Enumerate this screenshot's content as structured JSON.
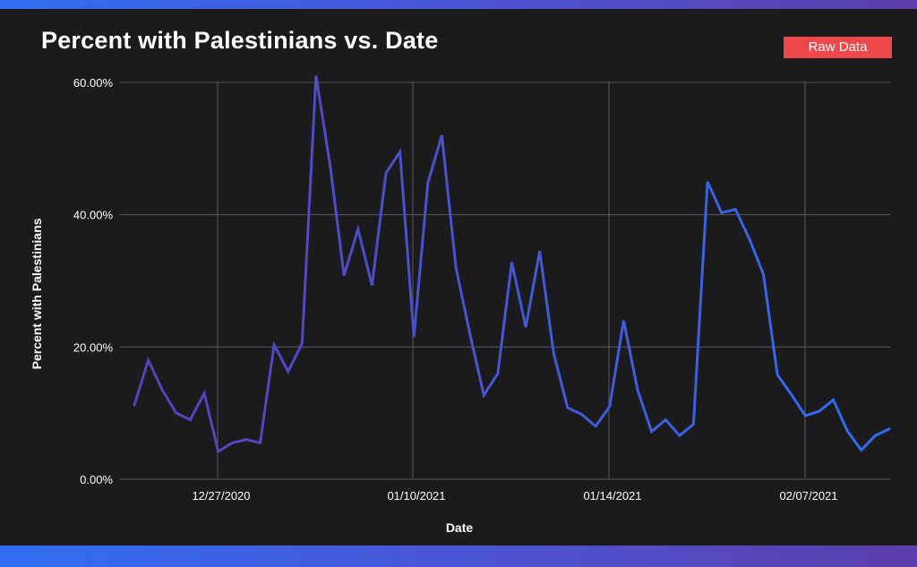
{
  "header": {
    "title": "Percent with Palestinians vs. Date",
    "raw_data_label": "Raw Data"
  },
  "colors": {
    "background": "#1b1b1d",
    "line_start": "#5a3fb5",
    "line_end": "#2f6df0",
    "button": "#f0474a",
    "grid": "#5a5a5e"
  },
  "chart_data": {
    "type": "line",
    "title": "Percent with Palestinians vs. Date",
    "xlabel": "Date",
    "ylabel": "Percent with Palestinians",
    "ylim": [
      0,
      60
    ],
    "y_ticks": [
      "0.00%",
      "20.00%",
      "40.00%",
      "60.00%"
    ],
    "x_tick_labels": [
      "12/27/2020",
      "01/10/2021",
      "01/14/2021",
      "02/07/2021"
    ],
    "grid": true,
    "series": [
      {
        "values": [
          11.2,
          18.0,
          13.5,
          10.0,
          9.0,
          13.0,
          4.2,
          5.5,
          6.0,
          5.5,
          20.3,
          16.3,
          20.5,
          61.0,
          47.5,
          30.8,
          37.8,
          29.3,
          46.3,
          49.5,
          21.5,
          44.8,
          52.0,
          32.0,
          22.0,
          12.7,
          16.0,
          32.8,
          23.0,
          34.5,
          19.0,
          10.8,
          9.8,
          8.0,
          11.0,
          24.0,
          13.5,
          7.2,
          9.0,
          6.6,
          8.3,
          45.0,
          40.3,
          40.8,
          36.3,
          31.0,
          15.8,
          12.8,
          9.6,
          10.3,
          12.0,
          7.3,
          4.4,
          6.6,
          7.6
        ]
      }
    ]
  }
}
